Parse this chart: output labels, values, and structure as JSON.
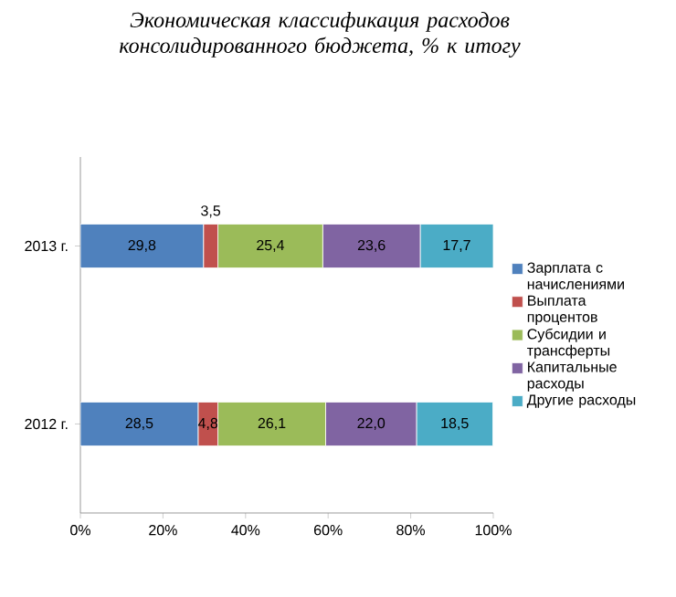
{
  "chart_data": {
    "type": "bar",
    "orientation": "horizontal",
    "stacked": true,
    "title": "Экономическая классификация расходов консолидированного бюджета, % к итогу",
    "categories": [
      "2013 г.",
      "2012 г."
    ],
    "series": [
      {
        "name": "Зарплата с начислениями",
        "color": "#4f81bd",
        "values": [
          29.8,
          28.5
        ],
        "value_labels": [
          "29,8",
          "28,5"
        ]
      },
      {
        "name": "Выплата процентов",
        "color": "#c0504d",
        "values": [
          3.5,
          4.8
        ],
        "value_labels": [
          "3,5",
          "4,8"
        ]
      },
      {
        "name": "Субсидии и трансферты",
        "color": "#9bbb59",
        "values": [
          25.4,
          26.1
        ],
        "value_labels": [
          "25,4",
          "26,1"
        ]
      },
      {
        "name": "Капитальные расходы",
        "color": "#8064a2",
        "values": [
          23.6,
          22.0
        ],
        "value_labels": [
          "23,6",
          "22,0"
        ]
      },
      {
        "name": "Другие расходы",
        "color": "#4bacc6",
        "values": [
          17.7,
          18.5
        ],
        "value_labels": [
          "17,7",
          "18,5"
        ]
      }
    ],
    "xlim": [
      0,
      100
    ],
    "xticks": [
      {
        "value": 0,
        "label": "0%"
      },
      {
        "value": 20,
        "label": "20%"
      },
      {
        "value": 40,
        "label": "40%"
      },
      {
        "value": 60,
        "label": "60%"
      },
      {
        "value": 80,
        "label": "80%"
      },
      {
        "value": 100,
        "label": "100%"
      }
    ],
    "legend": "right",
    "grid": false
  }
}
